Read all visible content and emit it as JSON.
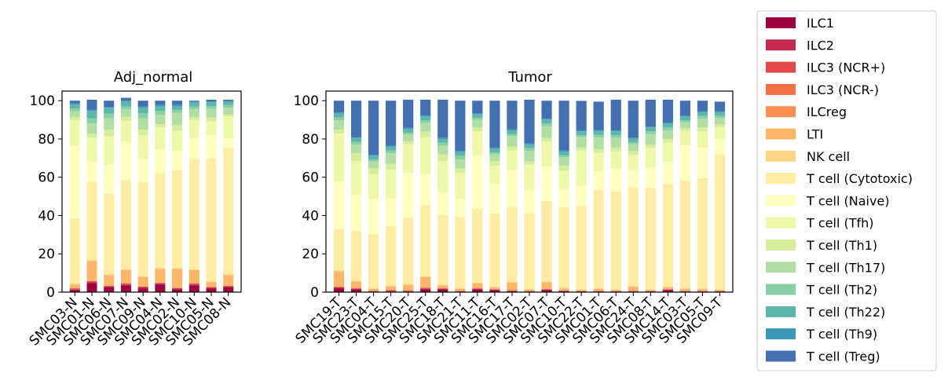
{
  "chart_data": [
    {
      "type": "bar",
      "stacked": true,
      "title": "Adj_normal",
      "xlabel": "",
      "ylabel": "",
      "ylim": [
        0,
        105
      ],
      "yticks": [
        0,
        20,
        40,
        60,
        80,
        100
      ],
      "grid": false,
      "categories": [
        "SMC03-N",
        "SMC01-N",
        "SMC06-N",
        "SMC07-N",
        "SMC09-N",
        "SMC04-N",
        "SMC02-N",
        "SMC10-N",
        "SMC05-N",
        "SMC08-N"
      ],
      "series": [
        {
          "name": "ILC1",
          "values": [
            1.0,
            4.5,
            2.5,
            3.5,
            2.0,
            4.0,
            1.5,
            3.5,
            2.0,
            2.5
          ]
        },
        {
          "name": "ILC2",
          "values": [
            0.5,
            0.8,
            0.5,
            0.5,
            0.5,
            0.5,
            0.5,
            0.5,
            0.3,
            0.5
          ]
        },
        {
          "name": "ILC3 (NCR+)",
          "values": [
            0.5,
            0.4,
            0.3,
            0.5,
            0.4,
            0.2,
            0.2,
            0.5,
            0.4,
            0.3
          ]
        },
        {
          "name": "ILC3 (NCR-)",
          "values": [
            0,
            0,
            0,
            0,
            0,
            0,
            0,
            0,
            0,
            0
          ]
        },
        {
          "name": "ILCreg",
          "values": [
            0,
            0,
            0,
            0,
            0,
            0,
            0,
            0,
            0,
            0
          ]
        },
        {
          "name": "LTI",
          "values": [
            2.0,
            10.5,
            5.5,
            7.0,
            5.0,
            7.5,
            10.0,
            7.0,
            2.5,
            5.5
          ]
        },
        {
          "name": "NK cell",
          "values": [
            0.5,
            0.5,
            0.5,
            0.5,
            0.5,
            0.5,
            0.5,
            0.5,
            0.5,
            0.5
          ]
        },
        {
          "name": "T cell (Cytotoxic)",
          "values": [
            34.0,
            41.0,
            42.0,
            46.5,
            49.0,
            49.5,
            51.0,
            57.5,
            64.0,
            66.0
          ]
        },
        {
          "name": "T cell (Naive)",
          "values": [
            38.0,
            10.5,
            15.5,
            20.0,
            12.0,
            12.5,
            10.0,
            11.0,
            12.5,
            5.0
          ]
        },
        {
          "name": "T cell (Tfh)",
          "values": [
            13.5,
            12.5,
            14.5,
            11.0,
            12.5,
            11.5,
            10.5,
            9.5,
            7.0,
            11.5
          ]
        },
        {
          "name": "T cell (Th1)",
          "values": [
            1.5,
            2.0,
            3.5,
            2.0,
            3.0,
            1.5,
            3.0,
            1.5,
            2.0,
            1.0
          ]
        },
        {
          "name": "T cell (Th17)",
          "values": [
            3.0,
            5.5,
            6.0,
            4.0,
            6.0,
            5.0,
            6.5,
            4.0,
            4.5,
            3.5
          ]
        },
        {
          "name": "T cell (Th2)",
          "values": [
            1.5,
            2.5,
            2.5,
            1.5,
            2.5,
            2.0,
            1.5,
            1.5,
            1.5,
            1.5
          ]
        },
        {
          "name": "T cell (Th22)",
          "values": [
            2.0,
            4.0,
            3.0,
            2.5,
            3.0,
            2.5,
            2.0,
            2.0,
            2.0,
            1.5
          ]
        },
        {
          "name": "T cell (Th9)",
          "values": [
            0.5,
            0.5,
            0.5,
            0.5,
            0.5,
            0.5,
            0.5,
            0.5,
            0.5,
            0.5
          ]
        },
        {
          "name": "T cell (Treg)",
          "values": [
            1.5,
            5.3,
            3.2,
            1.5,
            3.1,
            2.3,
            2.3,
            0.5,
            0.8,
            0.7
          ]
        }
      ]
    },
    {
      "type": "bar",
      "stacked": true,
      "title": "Tumor",
      "xlabel": "",
      "ylabel": "",
      "ylim": [
        0,
        105
      ],
      "yticks": [
        0,
        20,
        40,
        60,
        80,
        100
      ],
      "grid": false,
      "categories": [
        "SMC19-T",
        "SMC23-T",
        "SMC04-T",
        "SMC15-T",
        "SMC20-T",
        "SMC25-T",
        "SMC18-T",
        "SMC21-T",
        "SMC11-T",
        "SMC16-T",
        "SMC17-T",
        "SMC02-T",
        "SMC07-T",
        "SMC10-T",
        "SMC22-T",
        "SMC01-T",
        "SMC06-T",
        "SMC24-T",
        "SMC08-T",
        "SMC14-T",
        "SMC03-T",
        "SMC05-T",
        "SMC09-T"
      ],
      "series": [
        {
          "name": "ILC1",
          "values": [
            2.0,
            1.5,
            0.3,
            0.3,
            0.3,
            1.5,
            1.5,
            0.3,
            1.5,
            1.0,
            0.5,
            0.3,
            1.0,
            0.5,
            0.3,
            0.3,
            0.3,
            0.3,
            0.3,
            1.0,
            0.3,
            0.3,
            0.3
          ]
        },
        {
          "name": "ILC2",
          "values": [
            0.5,
            0.3,
            0.2,
            0.5,
            0.3,
            0.3,
            0.3,
            0.2,
            0.3,
            0.3,
            0.2,
            0.2,
            0.3,
            0.2,
            0.2,
            0.2,
            0.2,
            0.2,
            0.2,
            0.3,
            0.2,
            0.2,
            0.2
          ]
        },
        {
          "name": "ILC3 (NCR+)",
          "values": [
            0.3,
            0.2,
            0.2,
            0.2,
            0.2,
            0.5,
            0.2,
            0.2,
            0.2,
            0.2,
            0.3,
            0.2,
            0.3,
            0.2,
            0.2,
            0.2,
            0.2,
            0.2,
            0.2,
            0.2,
            0.2,
            0.2,
            0.2
          ]
        },
        {
          "name": "ILC3 (NCR-)",
          "values": [
            0,
            0,
            0,
            0,
            0,
            0,
            0,
            0,
            0,
            0,
            0,
            0,
            0,
            0,
            0,
            0,
            0,
            0,
            0,
            0,
            0,
            0,
            0
          ]
        },
        {
          "name": "ILCreg",
          "values": [
            0,
            0,
            0,
            0,
            0,
            0,
            0,
            0,
            0,
            0,
            0,
            0,
            0,
            0,
            0,
            0,
            0,
            0,
            0,
            0,
            0,
            0,
            0
          ]
        },
        {
          "name": "LTI",
          "values": [
            8.0,
            3.5,
            1.0,
            2.0,
            3.0,
            5.5,
            1.5,
            1.0,
            2.5,
            1.0,
            4.0,
            0.5,
            3.5,
            1.0,
            0.3,
            1.0,
            0.3,
            2.0,
            0.3,
            1.0,
            1.0,
            0.8,
            0.3
          ]
        },
        {
          "name": "NK cell",
          "values": [
            0.5,
            0.5,
            0.5,
            0.5,
            0.5,
            0.5,
            0.5,
            0.5,
            0.5,
            0.5,
            0.5,
            0.5,
            0.5,
            0.5,
            0.5,
            0.5,
            0.5,
            0.5,
            0.5,
            0.5,
            0.5,
            0.5,
            0.5
          ]
        },
        {
          "name": "T cell (Cytotoxic)",
          "values": [
            21.5,
            26.0,
            28.0,
            31.0,
            34.5,
            37.0,
            36.5,
            37.0,
            38.5,
            38.0,
            39.0,
            39.5,
            42.0,
            42.0,
            43.5,
            51.0,
            51.0,
            51.5,
            53.0,
            53.5,
            56.0,
            57.5,
            70.5
          ]
        },
        {
          "name": "T cell (Naive)",
          "values": [
            25.0,
            19.0,
            18.5,
            14.5,
            23.5,
            16.5,
            11.5,
            9.5,
            28.0,
            15.5,
            19.0,
            12.0,
            18.0,
            9.5,
            10.5,
            10.0,
            12.0,
            9.0,
            10.5,
            12.0,
            18.5,
            16.0,
            8.0
          ]
        },
        {
          "name": "T cell (Tfh)",
          "values": [
            25.0,
            17.5,
            13.0,
            15.0,
            15.0,
            19.0,
            16.5,
            13.5,
            12.5,
            9.5,
            10.5,
            13.5,
            13.0,
            9.5,
            18.5,
            9.5,
            9.0,
            8.0,
            10.5,
            9.5,
            7.5,
            8.5,
            6.0
          ]
        },
        {
          "name": "T cell (Th1)",
          "values": [
            2.0,
            4.0,
            3.0,
            3.0,
            1.5,
            3.0,
            3.5,
            2.5,
            2.0,
            2.5,
            2.0,
            1.5,
            2.0,
            2.5,
            1.5,
            2.0,
            2.0,
            2.0,
            1.5,
            2.0,
            1.5,
            2.0,
            1.5
          ]
        },
        {
          "name": "T cell (Th17)",
          "values": [
            5.0,
            4.5,
            3.5,
            5.5,
            3.5,
            4.5,
            4.5,
            4.5,
            4.0,
            3.5,
            5.5,
            5.5,
            6.0,
            4.5,
            5.5,
            6.0,
            5.0,
            3.5,
            5.5,
            4.5,
            3.0,
            4.5,
            3.5
          ]
        },
        {
          "name": "T cell (Th2)",
          "values": [
            1.5,
            1.5,
            1.0,
            1.5,
            1.0,
            1.5,
            1.5,
            2.0,
            1.0,
            1.0,
            1.0,
            1.5,
            1.5,
            1.0,
            1.0,
            1.5,
            1.5,
            1.0,
            1.5,
            1.5,
            1.0,
            1.5,
            1.0
          ]
        },
        {
          "name": "T cell (Th22)",
          "values": [
            2.0,
            2.0,
            2.0,
            2.0,
            2.0,
            2.0,
            2.0,
            2.0,
            2.0,
            2.0,
            2.0,
            2.0,
            2.0,
            2.0,
            2.0,
            2.0,
            2.0,
            2.0,
            2.0,
            2.0,
            2.0,
            2.0,
            2.0
          ]
        },
        {
          "name": "T cell (Th9)",
          "values": [
            0.5,
            0.5,
            0.5,
            0.5,
            0.5,
            0.5,
            0.5,
            0.5,
            0.5,
            0.5,
            0.5,
            0.5,
            0.5,
            0.5,
            0.5,
            0.5,
            0.5,
            0.5,
            0.5,
            0.5,
            0.5,
            0.5,
            0.5
          ]
        },
        {
          "name": "T cell (Treg)",
          "values": [
            6.2,
            19.0,
            28.3,
            23.5,
            14.7,
            8.2,
            20.0,
            26.3,
            6.5,
            24.5,
            15.0,
            22.8,
            9.4,
            26.1,
            15.4,
            14.8,
            16.0,
            19.3,
            14.0,
            12.0,
            7.8,
            5.5,
            5.0
          ]
        }
      ]
    }
  ],
  "legend": {
    "placement": "right",
    "items": [
      {
        "label": "ILC1",
        "color": "#9e0142"
      },
      {
        "label": "ILC2",
        "color": "#c42b4f"
      },
      {
        "label": "ILC3 (NCR+)",
        "color": "#e1494b"
      },
      {
        "label": "ILC3 (NCR-)",
        "color": "#f46d43"
      },
      {
        "label": "ILCreg",
        "color": "#fa8e51"
      },
      {
        "label": "LTI",
        "color": "#fdb567"
      },
      {
        "label": "NK cell",
        "color": "#fed585"
      },
      {
        "label": "T cell (Cytotoxic)",
        "color": "#feeca2"
      },
      {
        "label": "T cell (Naive)",
        "color": "#ffffbf"
      },
      {
        "label": "T cell (Tfh)",
        "color": "#eef8a6"
      },
      {
        "label": "T cell (Th1)",
        "color": "#d6ee9b"
      },
      {
        "label": "T cell (Th17)",
        "color": "#b1dfa3"
      },
      {
        "label": "T cell (Th2)",
        "color": "#88cfa4"
      },
      {
        "label": "T cell (Th22)",
        "color": "#5cb7aa"
      },
      {
        "label": "T cell (Th9)",
        "color": "#3d97b7"
      },
      {
        "label": "T cell (Treg)",
        "color": "#4470b1"
      }
    ]
  }
}
